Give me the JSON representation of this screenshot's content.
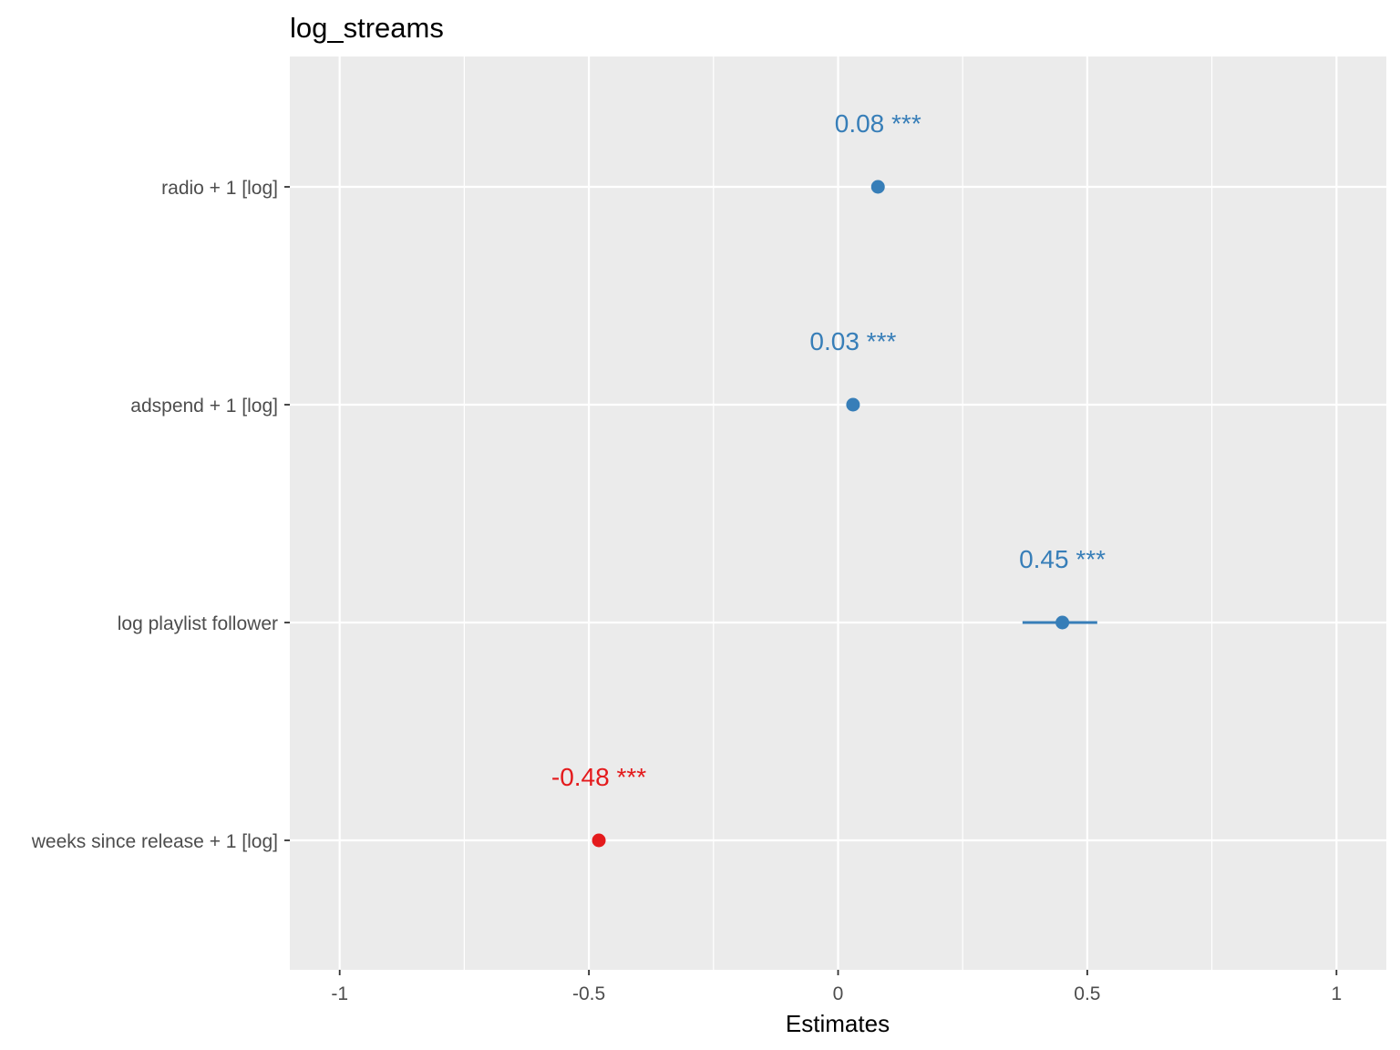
{
  "chart_data": {
    "type": "scatter",
    "title": "log_streams",
    "xlabel": "Estimates",
    "ylabel": "",
    "xlim": [
      -1.1,
      1.1
    ],
    "xticks": [
      -1,
      -0.5,
      0,
      0.5,
      1
    ],
    "xtick_labels": [
      "-1",
      "-0.5",
      "0",
      "0.5",
      "1"
    ],
    "grid": true,
    "colors": {
      "positive": "#377eb8",
      "negative": "#e41a1c",
      "panel": "#ebebeb",
      "grid": "#ffffff"
    },
    "terms": [
      {
        "label": "radio + 1 [log]",
        "estimate": 0.08,
        "ci_low": 0.075,
        "ci_high": 0.09,
        "data_label": "0.08 ***"
      },
      {
        "label": "adspend + 1 [log]",
        "estimate": 0.03,
        "ci_low": 0.025,
        "ci_high": 0.035,
        "data_label": "0.03 ***"
      },
      {
        "label": "log playlist follower",
        "estimate": 0.45,
        "ci_low": 0.37,
        "ci_high": 0.52,
        "data_label": "0.45 ***"
      },
      {
        "label": "weeks since release + 1 [log]",
        "estimate": -0.48,
        "ci_low": -0.49,
        "ci_high": -0.47,
        "data_label": "-0.48 ***"
      }
    ]
  }
}
